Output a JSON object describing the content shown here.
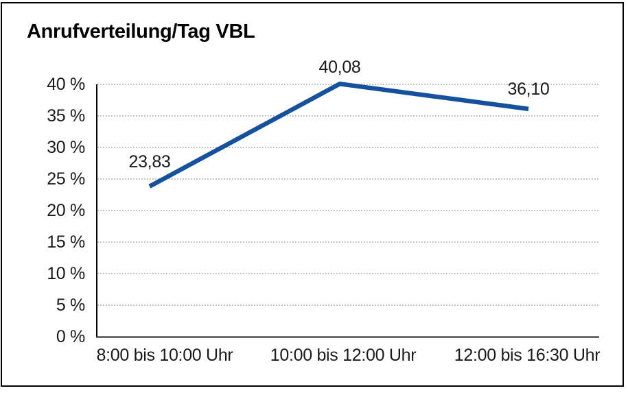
{
  "title": "Anrufverteilung/Tag VBL",
  "colors": {
    "background": "#ffffff",
    "frame_border": "#000000",
    "title_text": "#000000",
    "label_text": "#1a1a1a",
    "grid_line": "#8c8c8c",
    "y_axis_line": "#000000",
    "x_axis_line": "#4d4d4d",
    "series_line": "#15519D"
  },
  "chart_data": {
    "type": "line",
    "title": "Anrufverteilung/Tag VBL",
    "categories": [
      "8:00 bis 10:00 Uhr",
      "10:00 bis 12:00 Uhr",
      "12:00 bis 16:30 Uhr"
    ],
    "values": [
      23.83,
      40.08,
      36.1
    ],
    "data_labels": [
      "23,83",
      "40,08",
      "36,10"
    ],
    "xlabel": "",
    "ylabel": "",
    "ylim": [
      0,
      40
    ],
    "ytick_step": 5,
    "ytick_labels": [
      "0 %",
      "5 %",
      "10 %",
      "15 %",
      "20 %",
      "25 %",
      "30 %",
      "35 %",
      "40 %"
    ],
    "grid": true,
    "grid_style": "dotted",
    "legend": false
  }
}
